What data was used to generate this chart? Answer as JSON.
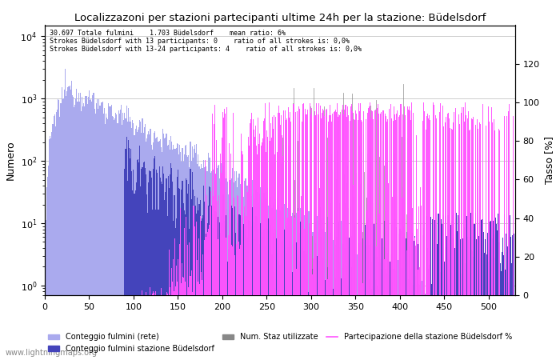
{
  "title": "Localizzazoni per stazioni partecipanti ultime 24h per la stazione: Büdelsdorf",
  "annotation_lines": [
    "30.697 Totale fulmini    1.703 Büdelsdorf    mean ratio: 6%",
    "Strokes Büdelsdorf with 13 participants: 0    ratio of all strokes is: 0,0%",
    "Strokes Büdelsdorf with 13-24 participants: 4    ratio of all strokes is: 0,0%"
  ],
  "ylabel_left": "Numero",
  "ylabel_right": "Tasso [%]",
  "ylim_left": [
    0.7,
    15000
  ],
  "ylim_right": [
    0,
    140
  ],
  "yticks_right": [
    0,
    20,
    40,
    60,
    80,
    100,
    120
  ],
  "xticks": [
    0,
    50,
    100,
    150,
    200,
    250,
    300,
    350,
    400,
    450,
    500
  ],
  "color_network": "#aaaaee",
  "color_station": "#4444bb",
  "color_grey": "#888888",
  "color_pink": "#ff55ff",
  "watermark": "www.lightningmaps.org",
  "legend_labels": [
    "Conteggio fulmini (rete)",
    "Conteggio fulmini stazione Büdelsdorf",
    "Num. Staz utilizzate",
    "Partecipazione della stazione Büdelsdorf %"
  ],
  "n": 530
}
